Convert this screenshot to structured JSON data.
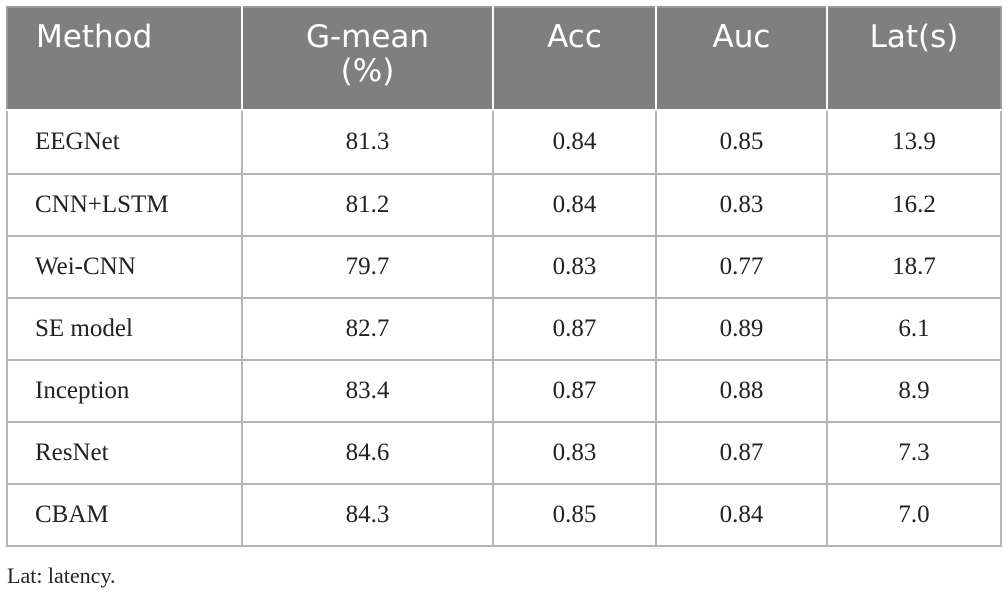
{
  "table": {
    "headers": [
      "Method",
      "G-mean (%)",
      "Acc",
      "Auc",
      "Lat(s)"
    ],
    "header_g_mean": {
      "line1": "G-mean",
      "line2": "(%)"
    },
    "rows": [
      [
        "EEGNet",
        "81.3",
        "0.84",
        "0.85",
        "13.9"
      ],
      [
        "CNN+LSTM",
        "81.2",
        "0.84",
        "0.83",
        "16.2"
      ],
      [
        "Wei-CNN",
        "79.7",
        "0.83",
        "0.77",
        "18.7"
      ],
      [
        "SE model",
        "82.7",
        "0.87",
        "0.89",
        "6.1"
      ],
      [
        "Inception",
        "83.4",
        "0.87",
        "0.88",
        "8.9"
      ],
      [
        "ResNet",
        "84.6",
        "0.83",
        "0.87",
        "7.3"
      ],
      [
        "CBAM",
        "84.3",
        "0.85",
        "0.84",
        "7.0"
      ]
    ],
    "header_bg": "#7f7f7f",
    "border_color": "#b5b5b5"
  },
  "footnote": "Lat: latency."
}
